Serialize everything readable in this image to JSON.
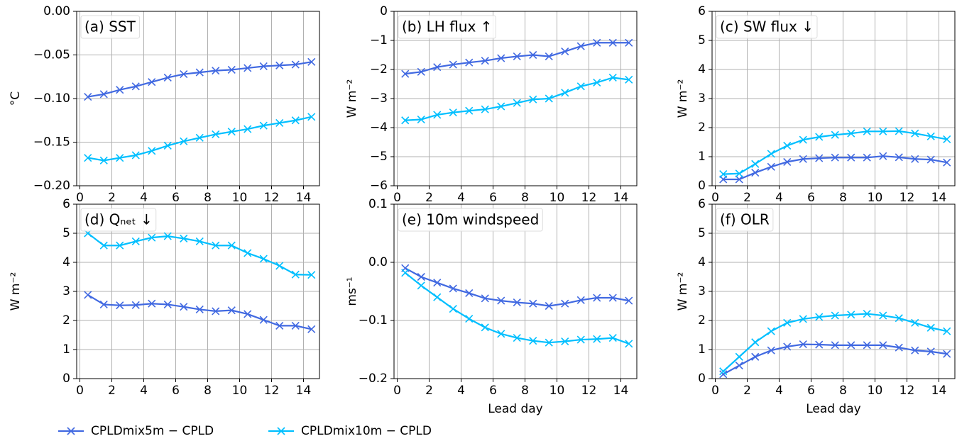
{
  "chart_data": [
    {
      "type": "line",
      "title": "(a) SST",
      "ylabel": "°C",
      "x": [
        0.5,
        1.5,
        2.5,
        3.5,
        4.5,
        5.5,
        6.5,
        7.5,
        8.5,
        9.5,
        10.5,
        11.5,
        12.5,
        13.5,
        14.5
      ],
      "xlim": [
        -0.2,
        15
      ],
      "xticks": [
        0,
        2,
        4,
        6,
        8,
        10,
        12,
        14
      ],
      "ylim": [
        -0.2,
        0
      ],
      "yticks": [
        {
          "value": -0.2,
          "label": "−0.20"
        },
        {
          "value": -0.15,
          "label": "−0.15"
        },
        {
          "value": -0.1,
          "label": "−0.10"
        },
        {
          "value": -0.05,
          "label": "−0.05"
        },
        {
          "value": 0,
          "label": "0.00"
        }
      ],
      "grid": true,
      "series": [
        {
          "name": "CPLDmix5m − CPLD",
          "color": "#4169e1",
          "values": [
            -0.098,
            -0.095,
            -0.09,
            -0.086,
            -0.081,
            -0.076,
            -0.072,
            -0.07,
            -0.068,
            -0.067,
            -0.065,
            -0.063,
            -0.062,
            -0.061,
            -0.058
          ]
        },
        {
          "name": "CPLDmix10m − CPLD",
          "color": "#00bfff",
          "values": [
            -0.168,
            -0.171,
            -0.168,
            -0.165,
            -0.16,
            -0.154,
            -0.149,
            -0.145,
            -0.141,
            -0.138,
            -0.135,
            -0.131,
            -0.128,
            -0.125,
            -0.121
          ]
        }
      ]
    },
    {
      "type": "line",
      "title": "(b) LH flux  ↑",
      "ylabel": "W m⁻²",
      "x": [
        0.5,
        1.5,
        2.5,
        3.5,
        4.5,
        5.5,
        6.5,
        7.5,
        8.5,
        9.5,
        10.5,
        11.5,
        12.5,
        13.5,
        14.5
      ],
      "xlim": [
        -0.2,
        15
      ],
      "xticks": [
        0,
        2,
        4,
        6,
        8,
        10,
        12,
        14
      ],
      "ylim": [
        -6,
        0
      ],
      "yticks": [
        {
          "value": -6,
          "label": "−6"
        },
        {
          "value": -5,
          "label": "−5"
        },
        {
          "value": -4,
          "label": "−4"
        },
        {
          "value": -3,
          "label": "−3"
        },
        {
          "value": -2,
          "label": "−2"
        },
        {
          "value": -1,
          "label": "−1"
        },
        0
      ],
      "grid": true,
      "series": [
        {
          "color": "#4169e1",
          "values": [
            -2.15,
            -2.08,
            -1.92,
            -1.83,
            -1.76,
            -1.7,
            -1.61,
            -1.55,
            -1.5,
            -1.55,
            -1.38,
            -1.2,
            -1.08,
            -1.08,
            -1.08
          ]
        },
        {
          "color": "#00bfff",
          "values": [
            -3.75,
            -3.72,
            -3.56,
            -3.48,
            -3.42,
            -3.37,
            -3.27,
            -3.15,
            -3.03,
            -3.0,
            -2.8,
            -2.58,
            -2.45,
            -2.28,
            -2.35
          ]
        }
      ]
    },
    {
      "type": "line",
      "title": "(c) SW flux  ↓",
      "ylabel": "W m⁻²",
      "x": [
        0.5,
        1.5,
        2.5,
        3.5,
        4.5,
        5.5,
        6.5,
        7.5,
        8.5,
        9.5,
        10.5,
        11.5,
        12.5,
        13.5,
        14.5
      ],
      "xlim": [
        -0.2,
        15
      ],
      "xticks": [
        0,
        2,
        4,
        6,
        8,
        10,
        12,
        14
      ],
      "ylim": [
        0,
        6
      ],
      "yticks": [
        0,
        1,
        2,
        3,
        4,
        5,
        6
      ],
      "grid": true,
      "series": [
        {
          "color": "#4169e1",
          "values": [
            0.22,
            0.22,
            0.45,
            0.65,
            0.82,
            0.92,
            0.95,
            0.97,
            0.97,
            0.97,
            1.02,
            0.98,
            0.92,
            0.9,
            0.8
          ]
        },
        {
          "color": "#00bfff",
          "values": [
            0.4,
            0.42,
            0.75,
            1.1,
            1.38,
            1.58,
            1.68,
            1.75,
            1.8,
            1.87,
            1.87,
            1.88,
            1.8,
            1.7,
            1.6
          ]
        }
      ]
    },
    {
      "type": "line",
      "title": "(d) Qₙₑₜ  ↓",
      "ylabel": "W m⁻²",
      "x": [
        0.5,
        1.5,
        2.5,
        3.5,
        4.5,
        5.5,
        6.5,
        7.5,
        8.5,
        9.5,
        10.5,
        11.5,
        12.5,
        13.5,
        14.5
      ],
      "xlim": [
        -0.2,
        15
      ],
      "xticks": [
        0,
        2,
        4,
        6,
        8,
        10,
        12,
        14
      ],
      "ylim": [
        0,
        6
      ],
      "yticks": [
        0,
        1,
        2,
        3,
        4,
        5,
        6
      ],
      "grid": true,
      "series": [
        {
          "color": "#4169e1",
          "values": [
            2.88,
            2.55,
            2.52,
            2.53,
            2.58,
            2.55,
            2.47,
            2.38,
            2.32,
            2.35,
            2.22,
            2.02,
            1.82,
            1.82,
            1.7
          ]
        },
        {
          "color": "#00bfff",
          "values": [
            5.0,
            4.58,
            4.58,
            4.72,
            4.85,
            4.9,
            4.82,
            4.72,
            4.58,
            4.58,
            4.32,
            4.12,
            3.88,
            3.58,
            3.57
          ]
        }
      ]
    },
    {
      "type": "line",
      "title": "(e) 10m windspeed",
      "ylabel": "ms⁻¹",
      "xlabel": "Lead day",
      "x": [
        0.5,
        1.5,
        2.5,
        3.5,
        4.5,
        5.5,
        6.5,
        7.5,
        8.5,
        9.5,
        10.5,
        11.5,
        12.5,
        13.5,
        14.5
      ],
      "xlim": [
        -0.2,
        15
      ],
      "xticks": [
        0,
        2,
        4,
        6,
        8,
        10,
        12,
        14
      ],
      "ylim": [
        -0.2,
        0.1
      ],
      "yticks": [
        {
          "value": -0.2,
          "label": "−0.2"
        },
        {
          "value": -0.1,
          "label": "−0.1"
        },
        {
          "value": 0,
          "label": "0.0"
        },
        0.1
      ],
      "grid": true,
      "series": [
        {
          "color": "#4169e1",
          "values": [
            -0.01,
            -0.025,
            -0.035,
            -0.045,
            -0.053,
            -0.062,
            -0.066,
            -0.069,
            -0.071,
            -0.075,
            -0.071,
            -0.065,
            -0.061,
            -0.061,
            -0.066
          ]
        },
        {
          "color": "#00bfff",
          "values": [
            -0.018,
            -0.04,
            -0.06,
            -0.08,
            -0.097,
            -0.112,
            -0.123,
            -0.13,
            -0.135,
            -0.138,
            -0.136,
            -0.133,
            -0.132,
            -0.13,
            -0.14
          ]
        }
      ]
    },
    {
      "type": "line",
      "title": "(f) OLR",
      "ylabel": "W m⁻²",
      "xlabel": "Lead day",
      "x": [
        0.5,
        1.5,
        2.5,
        3.5,
        4.5,
        5.5,
        6.5,
        7.5,
        8.5,
        9.5,
        10.5,
        11.5,
        12.5,
        13.5,
        14.5
      ],
      "xlim": [
        -0.2,
        15
      ],
      "xticks": [
        0,
        2,
        4,
        6,
        8,
        10,
        12,
        14
      ],
      "ylim": [
        0,
        6
      ],
      "yticks": [
        0,
        1,
        2,
        3,
        4,
        5,
        6
      ],
      "grid": true,
      "series": [
        {
          "color": "#4169e1",
          "values": [
            0.15,
            0.45,
            0.75,
            0.97,
            1.1,
            1.18,
            1.17,
            1.15,
            1.15,
            1.15,
            1.15,
            1.07,
            0.97,
            0.93,
            0.85
          ]
        },
        {
          "color": "#00bfff",
          "values": [
            0.25,
            0.75,
            1.25,
            1.63,
            1.92,
            2.05,
            2.12,
            2.17,
            2.2,
            2.23,
            2.17,
            2.08,
            1.92,
            1.75,
            1.63
          ]
        }
      ]
    }
  ]
}
